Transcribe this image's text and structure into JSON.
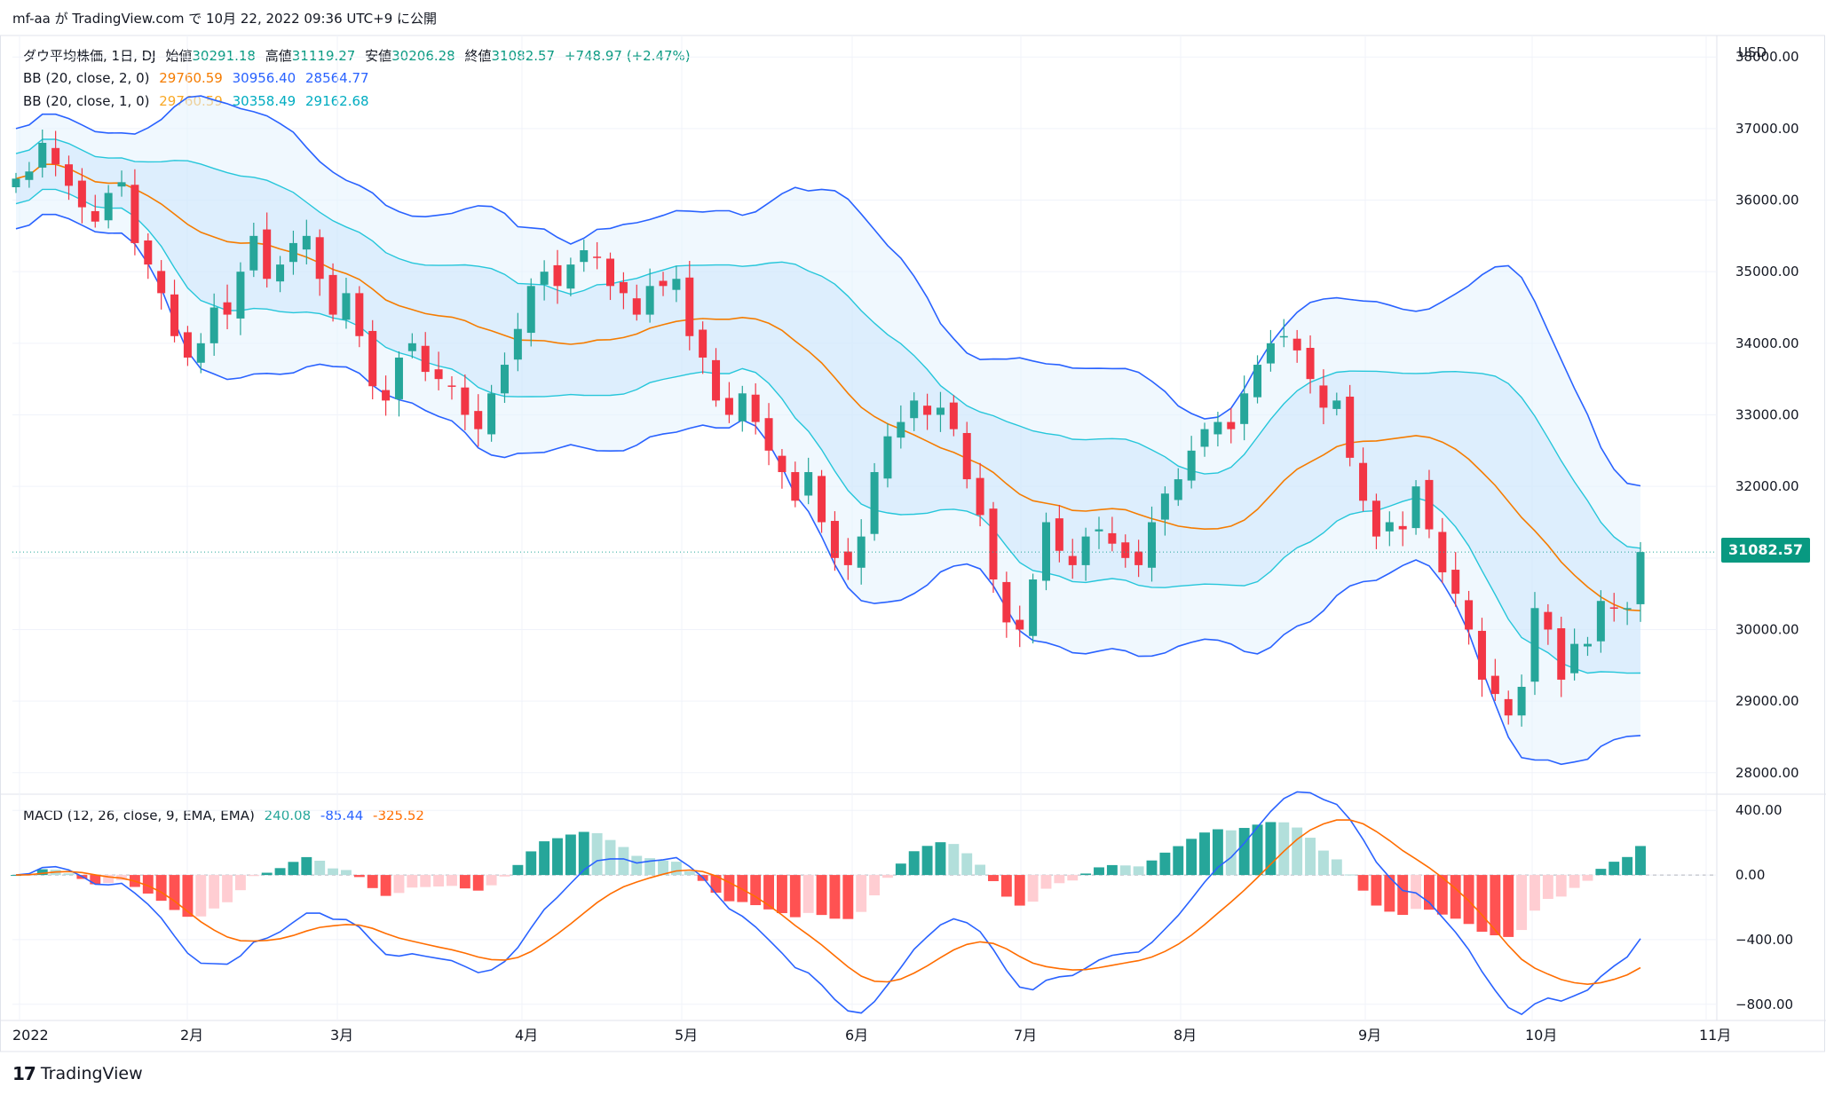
{
  "header": {
    "publish_line": "mf-aa が TradingView.com で 10月 22, 2022 09:36 UTC+9 に公開"
  },
  "legend": {
    "symbol": "ダウ平均株価, 1日, DJ",
    "open_label": "始値",
    "open": "30291.18",
    "high_label": "高値",
    "high": "31119.27",
    "low_label": "安値",
    "low": "30206.28",
    "close_label": "終値",
    "close": "31082.57",
    "change": "+748.97 (+2.47%)",
    "bb1_label": "BB (20, close, 2, 0)",
    "bb1_basis": "29760.59",
    "bb1_upper": "30956.40",
    "bb1_lower": "28564.77",
    "bb2_label": "BB (20, close, 1, 0)",
    "bb2_basis": "29760.59",
    "bb2_upper": "30358.49",
    "bb2_lower": "29162.68",
    "macd_label": "MACD (12, 26, close, 9, EMA, EMA)",
    "macd_hist": "240.08",
    "macd_line": "-85.44",
    "macd_signal": "-325.52"
  },
  "price_axis": {
    "currency": "USD",
    "ticks": [
      "38000.00",
      "37000.00",
      "36000.00",
      "35000.00",
      "34000.00",
      "33000.00",
      "32000.00",
      "31000.00",
      "30000.00",
      "29000.00",
      "28000.00"
    ],
    "last_price": "31082.57"
  },
  "macd_axis": {
    "ticks": [
      "400.00",
      "0.00",
      "−400.00",
      "−800.00"
    ]
  },
  "time_axis": {
    "ticks": [
      "2022",
      "2月",
      "3月",
      "4月",
      "5月",
      "6月",
      "7月",
      "8月",
      "9月",
      "10月",
      "11月"
    ]
  },
  "footer": {
    "brand": "TradingView",
    "logo_mark": "17"
  },
  "colors": {
    "up": "#26a69a",
    "down": "#f23645",
    "bb_outer": "#2962ff",
    "bb_inner": "#26c6da",
    "basis": "#f57c00",
    "macd_line": "#2962ff",
    "signal_line": "#ff6d00",
    "hist_up_strong": "#26a69a",
    "hist_up_weak": "#b2dfdb",
    "hist_down_strong": "#ff5252",
    "hist_down_weak": "#ffcdd2",
    "band_fill": "#e3f2fd",
    "last_price_bg": "#089981"
  },
  "chart_data": [
    {
      "type": "candlestick",
      "title": "ダウ平均株価, 1日, DJ",
      "ylim": [
        27700,
        38300
      ],
      "x_ticks": [
        "2022",
        "2月",
        "3月",
        "4月",
        "5月",
        "6月",
        "7月",
        "8月",
        "9月",
        "10月",
        "11月"
      ],
      "close_series": [
        36300,
        36400,
        36800,
        36500,
        36200,
        35900,
        35700,
        36100,
        36250,
        35400,
        35100,
        34700,
        34100,
        33800,
        34000,
        34500,
        34400,
        35000,
        35500,
        34900,
        35100,
        35400,
        35500,
        34900,
        34400,
        34700,
        34100,
        33400,
        33200,
        33800,
        34000,
        33600,
        33500,
        33400,
        33000,
        32800,
        33300,
        33700,
        34200,
        34800,
        35000,
        34800,
        35100,
        35300,
        35200,
        34800,
        34700,
        34400,
        34800,
        34800,
        34900,
        34100,
        33800,
        33200,
        33000,
        33300,
        32900,
        32500,
        32200,
        31800,
        32200,
        31500,
        31000,
        30900,
        31300,
        32200,
        32700,
        32900,
        33200,
        33000,
        33100,
        32800,
        32100,
        31600,
        30700,
        30100,
        30000,
        30700,
        31500,
        31100,
        30900,
        31300,
        31400,
        31200,
        31000,
        30900,
        31500,
        31900,
        32100,
        32500,
        32800,
        32900,
        32800,
        33300,
        33700,
        34000,
        34100,
        33900,
        33500,
        33100,
        33200,
        32400,
        31800,
        31300,
        31500,
        31400,
        32000,
        31400,
        30800,
        30500,
        30000,
        29300,
        29100,
        28800,
        29200,
        30300,
        30000,
        29300,
        29800,
        29800,
        30400,
        30300,
        30300,
        31083
      ],
      "bb_2sd": {
        "basis": "29760.59",
        "upper": "30956.40",
        "lower": "28564.77"
      },
      "bb_1sd": {
        "basis": "29760.59",
        "upper": "30358.49",
        "lower": "29162.68"
      },
      "last": {
        "open": 30291.18,
        "high": 31119.27,
        "low": 30206.28,
        "close": 31082.57,
        "change": 748.97,
        "change_pct": 2.47
      }
    },
    {
      "type": "line",
      "title": "MACD (12, 26, close, 9, EMA, EMA)",
      "ylim": [
        -900,
        500
      ],
      "series": [
        {
          "name": "MACD",
          "values": [
            -85.44
          ]
        },
        {
          "name": "Signal",
          "values": [
            -325.52
          ]
        },
        {
          "name": "Histogram",
          "values": [
            240.08
          ]
        }
      ]
    }
  ]
}
